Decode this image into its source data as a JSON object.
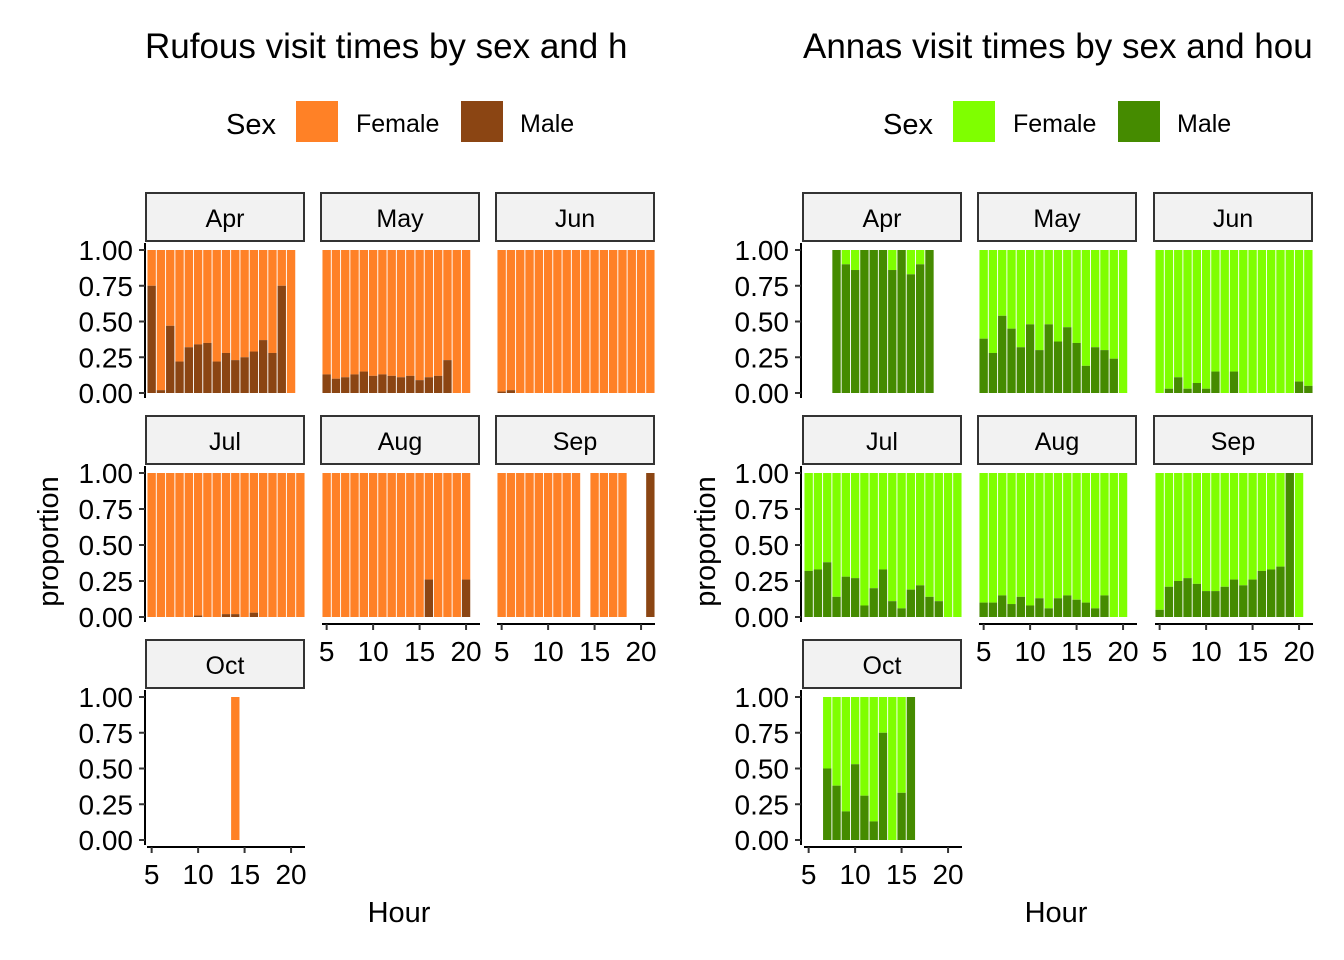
{
  "chart_data": [
    {
      "type": "bar",
      "stacked": "proportion",
      "title": "Rufous visit times by sex and h",
      "xlabel": "Hour",
      "ylabel": "proportion",
      "legend": {
        "title": "Sex",
        "position": "top",
        "entries": [
          "Female",
          "Male"
        ]
      },
      "colors": {
        "Female": "#FF8126",
        "Male": "#8B4513"
      },
      "ylim": [
        0,
        1
      ],
      "yticks": [
        "1.00",
        "0.75",
        "0.50",
        "0.25",
        "0.00"
      ],
      "xlim": [
        4.5,
        21.5
      ],
      "xticks": [
        5,
        10,
        15,
        20
      ],
      "grid": false,
      "panels": [
        {
          "month": "Apr",
          "hours": [
            5,
            6,
            7,
            8,
            9,
            10,
            11,
            12,
            13,
            14,
            15,
            16,
            17,
            18,
            19,
            20
          ],
          "male": [
            0.75,
            0.02,
            0.47,
            0.22,
            0.32,
            0.34,
            0.35,
            0.22,
            0.28,
            0.23,
            0.25,
            0.29,
            0.37,
            0.28,
            0.75,
            0
          ]
        },
        {
          "month": "May",
          "hours": [
            5,
            6,
            7,
            8,
            9,
            10,
            11,
            12,
            13,
            14,
            15,
            16,
            17,
            18,
            19,
            20
          ],
          "male": [
            0.13,
            0.1,
            0.11,
            0.13,
            0.15,
            0.12,
            0.13,
            0.12,
            0.11,
            0.12,
            0.09,
            0.11,
            0.12,
            0.23,
            0,
            0
          ]
        },
        {
          "month": "Jun",
          "hours": [
            5,
            6,
            7,
            8,
            9,
            10,
            11,
            12,
            13,
            14,
            15,
            16,
            17,
            18,
            19,
            20,
            21
          ],
          "male": [
            0.01,
            0.02,
            0,
            0,
            0,
            0,
            0,
            0,
            0,
            0,
            0,
            0,
            0,
            0,
            0,
            0,
            0
          ]
        },
        {
          "month": "Jul",
          "hours": [
            5,
            6,
            7,
            8,
            9,
            10,
            11,
            12,
            13,
            14,
            15,
            16,
            17,
            18,
            19,
            20,
            21
          ],
          "male": [
            0,
            0,
            0,
            0,
            0,
            0.01,
            0,
            0,
            0.02,
            0.02,
            0,
            0.03,
            0,
            0,
            0,
            0,
            0
          ]
        },
        {
          "month": "Aug",
          "hours": [
            5,
            6,
            7,
            8,
            9,
            10,
            11,
            12,
            13,
            14,
            15,
            16,
            17,
            18,
            19,
            20
          ],
          "male": [
            0,
            0,
            0,
            0,
            0,
            0,
            0,
            0,
            0,
            0,
            0,
            0.26,
            0,
            0,
            0,
            0.26
          ]
        },
        {
          "month": "Sep",
          "hours": [
            5,
            6,
            7,
            8,
            9,
            10,
            11,
            12,
            13,
            15,
            16,
            17,
            18,
            21
          ],
          "male": [
            0,
            0,
            0,
            0,
            0,
            0,
            0,
            0,
            0,
            0,
            0,
            0,
            0,
            1
          ]
        },
        {
          "month": "Oct",
          "hours": [
            14
          ],
          "male": [
            0
          ]
        }
      ]
    },
    {
      "type": "bar",
      "stacked": "proportion",
      "title": "Annas visit times by sex and hou",
      "xlabel": "Hour",
      "ylabel": "proportion",
      "legend": {
        "title": "Sex",
        "position": "top",
        "entries": [
          "Female",
          "Male"
        ]
      },
      "colors": {
        "Female": "#7FFF00",
        "Male": "#458B00"
      },
      "ylim": [
        0,
        1
      ],
      "yticks": [
        "1.00",
        "0.75",
        "0.50",
        "0.25",
        "0.00"
      ],
      "xlim": [
        4.5,
        21.5
      ],
      "xticks": [
        5,
        10,
        15,
        20
      ],
      "grid": false,
      "panels": [
        {
          "month": "Apr",
          "hours": [
            8,
            9,
            10,
            11,
            12,
            13,
            14,
            15,
            16,
            17,
            18
          ],
          "male": [
            1,
            0.9,
            0.86,
            1,
            1,
            1,
            0.86,
            1,
            0.83,
            0.9,
            1
          ]
        },
        {
          "month": "May",
          "hours": [
            5,
            6,
            7,
            8,
            9,
            10,
            11,
            12,
            13,
            14,
            15,
            16,
            17,
            18,
            19,
            20
          ],
          "male": [
            0.38,
            0.28,
            0.54,
            0.45,
            0.32,
            0.48,
            0.3,
            0.48,
            0.36,
            0.46,
            0.35,
            0.19,
            0.32,
            0.3,
            0.24,
            0
          ]
        },
        {
          "month": "Jun",
          "hours": [
            5,
            6,
            7,
            8,
            9,
            10,
            11,
            12,
            13,
            14,
            15,
            16,
            17,
            18,
            19,
            20,
            21
          ],
          "male": [
            0,
            0.03,
            0.11,
            0.03,
            0.07,
            0.03,
            0.15,
            0,
            0.15,
            0,
            0,
            0,
            0,
            0,
            0,
            0.08,
            0.05
          ]
        },
        {
          "month": "Jul",
          "hours": [
            5,
            6,
            7,
            8,
            9,
            10,
            11,
            12,
            13,
            14,
            15,
            16,
            17,
            18,
            19,
            20,
            21
          ],
          "male": [
            0.32,
            0.33,
            0.38,
            0.14,
            0.28,
            0.27,
            0.08,
            0.2,
            0.33,
            0.11,
            0.06,
            0.19,
            0.22,
            0.14,
            0.11,
            0,
            0
          ]
        },
        {
          "month": "Aug",
          "hours": [
            5,
            6,
            7,
            8,
            9,
            10,
            11,
            12,
            13,
            14,
            15,
            16,
            17,
            18,
            19,
            20
          ],
          "male": [
            0.1,
            0.1,
            0.15,
            0.09,
            0.14,
            0.08,
            0.13,
            0.06,
            0.13,
            0.15,
            0.12,
            0.1,
            0.06,
            0.15,
            0,
            0
          ]
        },
        {
          "month": "Sep",
          "hours": [
            5,
            6,
            7,
            8,
            9,
            10,
            11,
            12,
            13,
            14,
            15,
            16,
            17,
            18,
            19,
            20
          ],
          "male": [
            0.05,
            0.21,
            0.25,
            0.27,
            0.23,
            0.18,
            0.18,
            0.21,
            0.26,
            0.22,
            0.26,
            0.32,
            0.33,
            0.35,
            1,
            0
          ]
        },
        {
          "month": "Oct",
          "hours": [
            7,
            8,
            9,
            10,
            11,
            12,
            13,
            14,
            15,
            16
          ],
          "male": [
            0.5,
            0.38,
            0.2,
            0.53,
            0.31,
            0.13,
            0.75,
            0,
            0.33,
            1
          ]
        }
      ]
    }
  ]
}
